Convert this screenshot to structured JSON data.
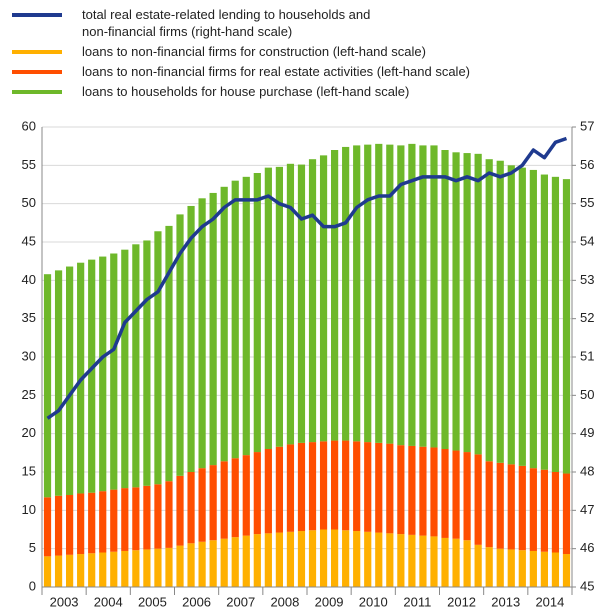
{
  "chart_data": {
    "type": "bar_line",
    "categories": [
      "2003",
      null,
      null,
      null,
      "2004",
      null,
      null,
      null,
      "2005",
      null,
      null,
      null,
      "2006",
      null,
      null,
      null,
      "2007",
      null,
      null,
      null,
      "2008",
      null,
      null,
      null,
      "2009",
      null,
      null,
      null,
      "2010",
      null,
      null,
      null,
      "2011",
      null,
      null,
      null,
      "2012",
      null,
      null,
      null,
      "2013",
      null,
      null,
      null,
      "2014",
      null,
      null,
      null
    ],
    "series": [
      {
        "name": "total real estate-related lending to households and\nnon-financial firms (right-hand scale)",
        "color": "#1f3a8f",
        "type": "line",
        "axis": "y2",
        "values": [
          49.4,
          49.6,
          50.0,
          50.4,
          50.7,
          51.0,
          51.2,
          51.9,
          52.2,
          52.5,
          52.7,
          53.2,
          53.7,
          54.1,
          54.4,
          54.6,
          54.9,
          55.1,
          55.1,
          55.1,
          55.2,
          55.0,
          54.9,
          54.6,
          54.7,
          54.4,
          54.4,
          54.5,
          54.9,
          55.1,
          55.2,
          55.2,
          55.5,
          55.6,
          55.7,
          55.7,
          55.7,
          55.6,
          55.7,
          55.6,
          55.8,
          55.7,
          55.8,
          56.0,
          56.4,
          56.2,
          56.6,
          56.7
        ]
      },
      {
        "name": "loans to non-financial firms for construction (left-hand scale)",
        "color": "#ffb000",
        "type": "bar",
        "values": [
          4.0,
          4.1,
          4.2,
          4.3,
          4.4,
          4.5,
          4.6,
          4.7,
          4.8,
          4.9,
          5.0,
          5.1,
          5.4,
          5.7,
          5.9,
          6.1,
          6.3,
          6.5,
          6.7,
          6.9,
          7.0,
          7.1,
          7.2,
          7.3,
          7.4,
          7.5,
          7.5,
          7.4,
          7.3,
          7.2,
          7.1,
          7.0,
          6.9,
          6.8,
          6.7,
          6.6,
          6.4,
          6.3,
          6.1,
          5.5,
          5.2,
          5.0,
          4.9,
          4.8,
          4.7,
          4.6,
          4.5,
          4.3
        ]
      },
      {
        "name": "loans to non-financial firms for real estate activities (left-hand scale)",
        "color": "#ff4e00",
        "type": "bar",
        "values": [
          7.7,
          7.8,
          7.8,
          7.9,
          7.9,
          8.0,
          8.1,
          8.2,
          8.2,
          8.3,
          8.4,
          8.7,
          9.1,
          9.3,
          9.6,
          9.8,
          10.1,
          10.3,
          10.5,
          10.7,
          11.0,
          11.2,
          11.4,
          11.5,
          11.5,
          11.5,
          11.6,
          11.7,
          11.7,
          11.7,
          11.7,
          11.7,
          11.6,
          11.6,
          11.6,
          11.6,
          11.6,
          11.5,
          11.5,
          11.8,
          11.2,
          11.2,
          11.1,
          11.0,
          10.8,
          10.7,
          10.5,
          10.5
        ]
      },
      {
        "name": "loans to households for house purchase (left-hand scale)",
        "color": "#6eb82a",
        "type": "bar",
        "values": [
          29.1,
          29.4,
          29.8,
          30.1,
          30.4,
          30.6,
          30.8,
          31.1,
          31.7,
          32.0,
          33.0,
          33.3,
          34.1,
          34.7,
          35.2,
          35.5,
          35.8,
          36.2,
          36.3,
          36.4,
          36.7,
          36.5,
          36.6,
          36.3,
          36.9,
          37.3,
          37.9,
          38.3,
          38.6,
          38.8,
          39.0,
          39.0,
          39.1,
          39.4,
          39.3,
          39.4,
          39.0,
          38.9,
          39.0,
          39.2,
          39.4,
          39.4,
          39.0,
          38.9,
          38.9,
          38.5,
          38.5,
          38.4
        ]
      }
    ],
    "ylim": [
      0,
      60
    ],
    "yticks": [
      0,
      5,
      10,
      15,
      20,
      25,
      30,
      35,
      40,
      45,
      50,
      55,
      60
    ],
    "y2lim": [
      45,
      57
    ],
    "y2ticks": [
      45,
      46,
      47,
      48,
      49,
      50,
      51,
      52,
      53,
      54,
      55,
      56,
      57
    ],
    "grid": true
  }
}
